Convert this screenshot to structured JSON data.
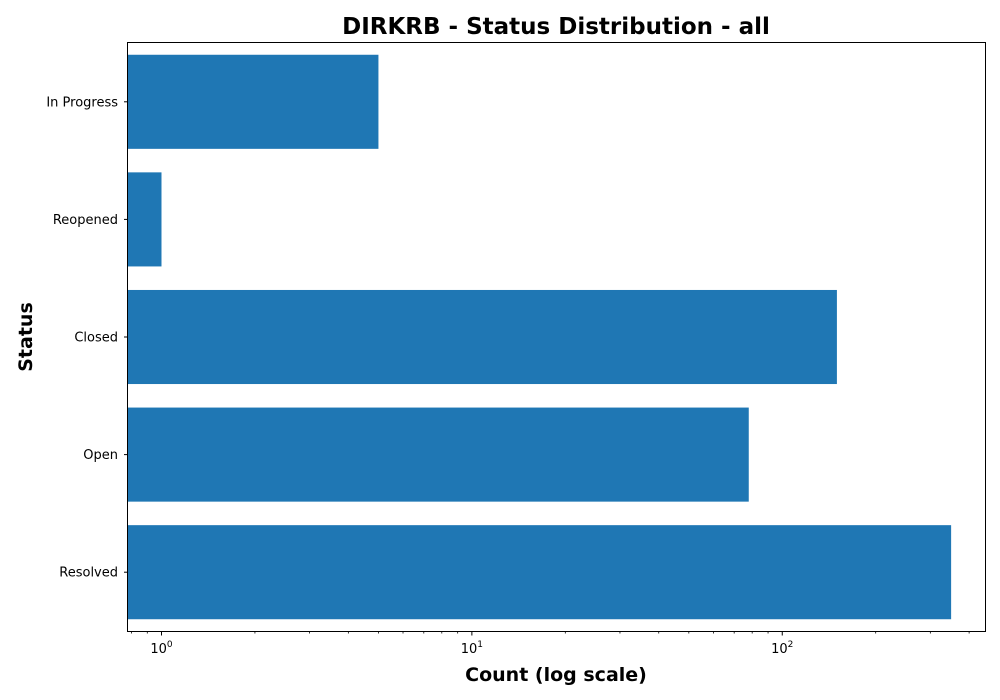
{
  "chart_data": {
    "type": "bar",
    "orientation": "horizontal",
    "title": "DIRKRB - Status Distribution - all",
    "xlabel": "Count (log scale)",
    "ylabel": "Status",
    "xscale": "log",
    "xlim": [
      0.78,
      450
    ],
    "x_major_ticks": [
      {
        "base": "10",
        "exp": "0",
        "value": 1
      },
      {
        "base": "10",
        "exp": "1",
        "value": 10
      },
      {
        "base": "10",
        "exp": "2",
        "value": 100
      }
    ],
    "categories": [
      "In Progress",
      "Reopened",
      "Closed",
      "Open",
      "Resolved"
    ],
    "values": [
      5,
      1,
      150,
      78,
      350
    ],
    "bar_color": "#1f77b4",
    "grid": false,
    "legend": "none"
  }
}
